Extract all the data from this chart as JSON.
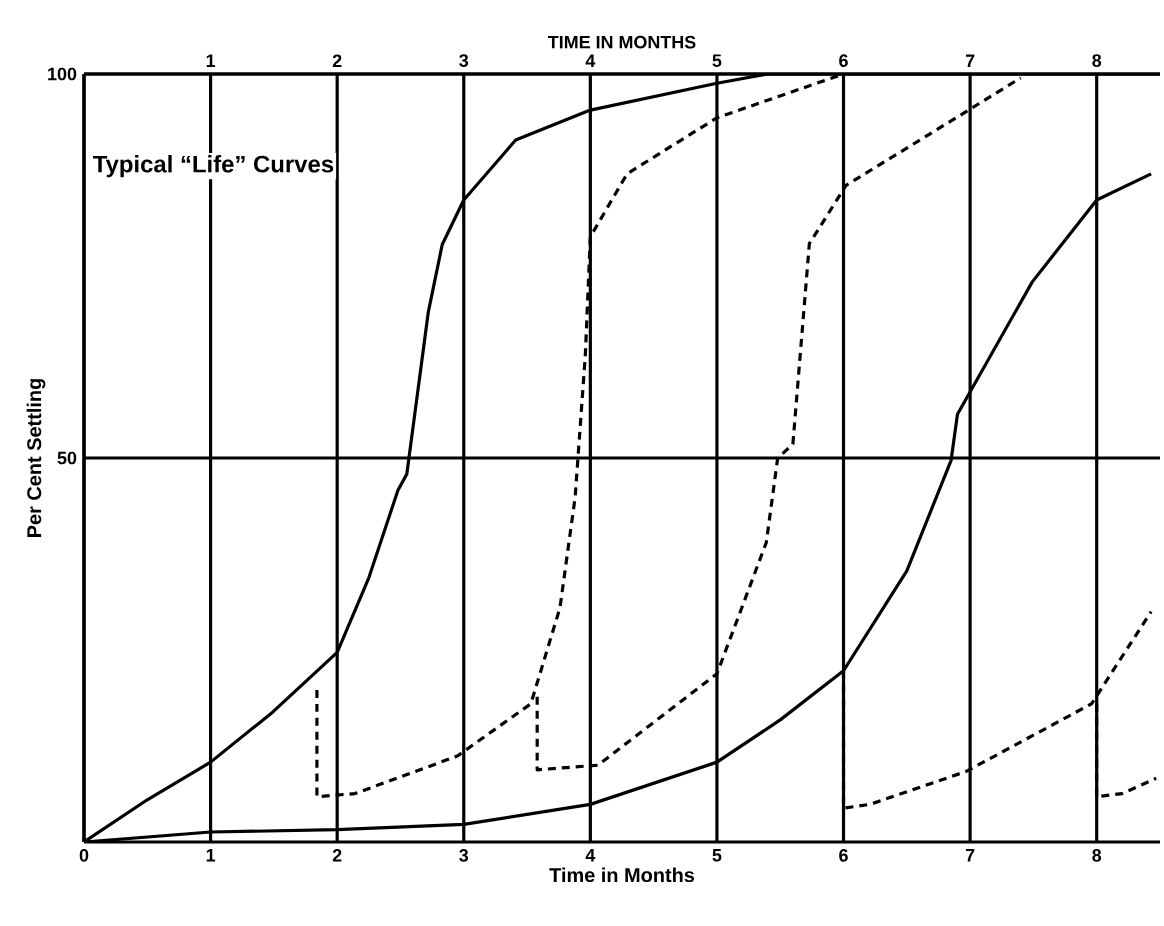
{
  "chart_data": {
    "type": "line",
    "xlabel": "Time in Months",
    "ylabel": "Per Cent Settling",
    "x2label": "TIME IN MONTHS",
    "annotations": [
      "Typical “Life” Curves"
    ],
    "xlim": [
      0,
      8.5
    ],
    "ylim": [
      0,
      100
    ],
    "x2lim": [
      0,
      8.5
    ],
    "xticks": [
      0,
      1,
      2,
      3,
      4,
      5,
      6,
      7,
      8
    ],
    "yticks": [
      50,
      100
    ],
    "x2ticks": [
      1,
      2,
      3,
      4,
      5,
      6,
      7,
      8
    ],
    "grid": true,
    "series": [
      {
        "color": "#000000",
        "line_style": "solid",
        "x": [
          0,
          0.5,
          1,
          1.49,
          2,
          2.25,
          2.48,
          2.55,
          2.72,
          2.83,
          3,
          3.41,
          4,
          5,
          5.4,
          8.5
        ],
        "values": [
          0,
          5.5,
          10.4,
          16.9,
          24.7,
          34.4,
          45.8,
          47.9,
          69,
          77.8,
          83.6,
          91.4,
          95.3,
          98.8,
          100,
          100
        ]
      },
      {
        "color": "#000000",
        "line_style": "solid",
        "x": [
          0,
          1,
          2,
          3,
          4,
          5,
          5.5,
          6,
          6.5,
          6.85,
          6.9,
          7.49,
          8,
          8.43
        ],
        "values": [
          0,
          1.3,
          1.6,
          2.3,
          4.9,
          10.4,
          15.9,
          22.3,
          35.3,
          49.7,
          55.7,
          72.9,
          83.6,
          87
        ]
      },
      {
        "color": "#000000",
        "line_style": "dashed",
        "x": [
          1.84,
          1.84,
          2.14,
          2.95,
          3.53,
          3.76,
          3.88,
          3.96,
          4,
          4.29,
          5,
          6
        ],
        "values": [
          19.8,
          5.9,
          6.3,
          11.2,
          18,
          30.5,
          44.9,
          63.3,
          78.8,
          87,
          94.3,
          100
        ]
      },
      {
        "color": "#000000",
        "line_style": "dashed",
        "x": [
          3.58,
          3.58,
          4.06,
          5,
          5.39,
          5.48,
          5.6,
          5.73,
          6.02,
          6.9,
          7.4
        ],
        "values": [
          18.9,
          9.4,
          10,
          21.9,
          39,
          50,
          51.8,
          77.9,
          85.5,
          94.4,
          99.5
        ]
      },
      {
        "color": "#000000",
        "line_style": "dashed",
        "x": [
          6,
          6,
          6.21,
          6.97,
          7.96,
          8.43
        ],
        "values": [
          22.3,
          4.4,
          4.9,
          9.2,
          18,
          30
        ]
      },
      {
        "color": "#000000",
        "line_style": "dashed",
        "x": [
          8,
          8,
          8.2,
          8.47
        ],
        "values": [
          18,
          5.9,
          6.3,
          8.3
        ]
      }
    ]
  }
}
